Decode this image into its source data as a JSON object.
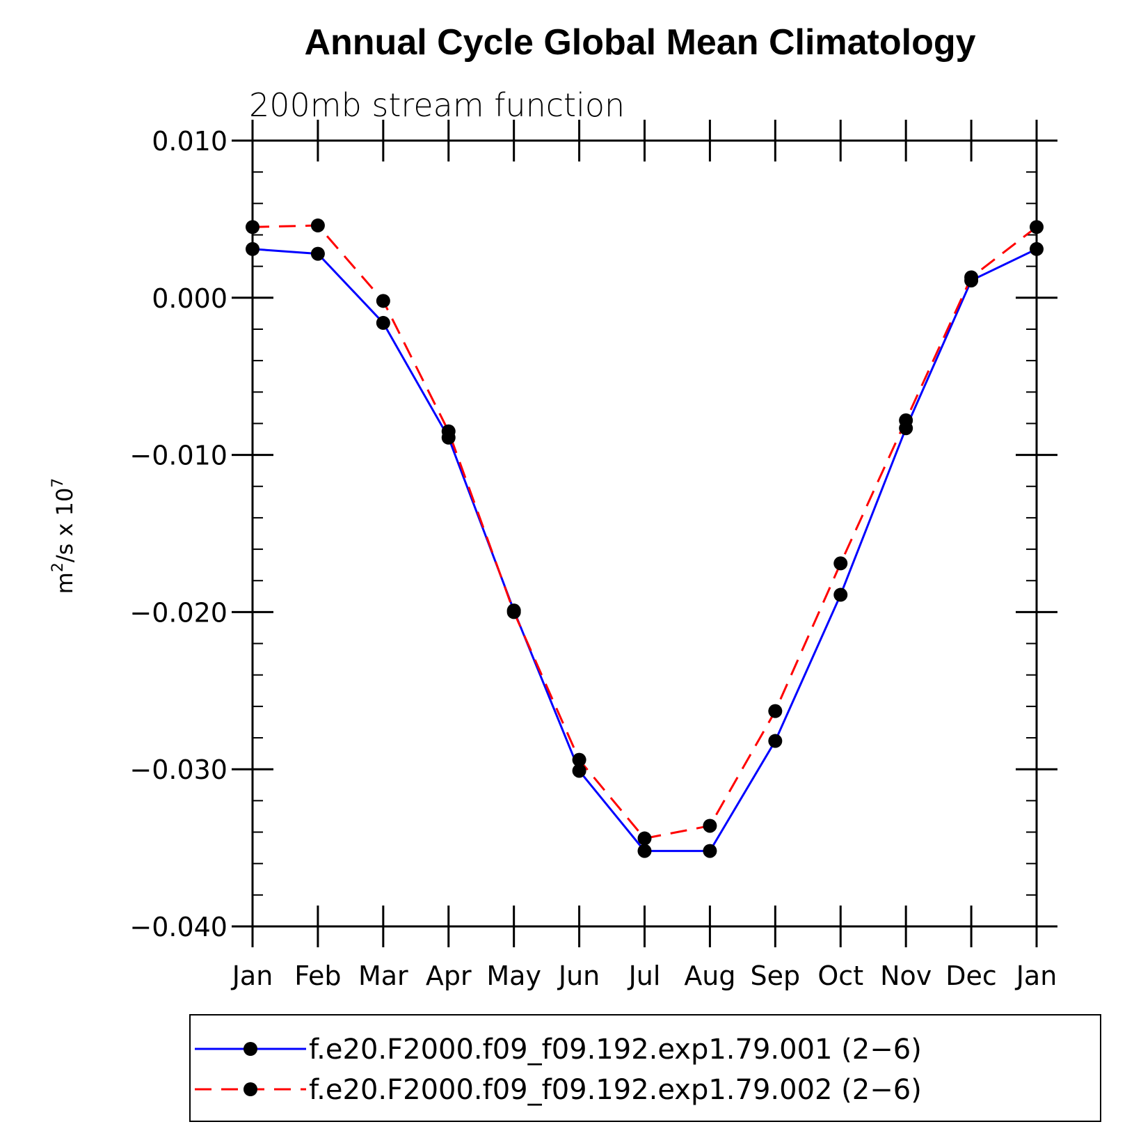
{
  "chart_data": {
    "type": "line",
    "title": "Annual Cycle Global Mean Climatology",
    "subtitle": "200mb stream function",
    "ylabel": "m²/s x 10⁷",
    "ylabel_parts": {
      "base": "m",
      "exp1": "2",
      "mid": "/s x 10",
      "exp2": "7"
    },
    "xlabel": "",
    "categories": [
      "Jan",
      "Feb",
      "Mar",
      "Apr",
      "May",
      "Jun",
      "Jul",
      "Aug",
      "Sep",
      "Oct",
      "Nov",
      "Dec",
      "Jan"
    ],
    "ylim": [
      -0.04,
      0.01
    ],
    "yticks": [
      0.01,
      0.0,
      -0.01,
      -0.02,
      -0.03,
      -0.04
    ],
    "ytick_labels": [
      "0.010",
      "0.000",
      "−0.010",
      "−0.020",
      "−0.030",
      "−0.040"
    ],
    "y_minor_step": 0.002,
    "grid": false,
    "legend_position": "bottom",
    "series": [
      {
        "name": "f.e20.F2000.f09_f09.192.exp1.79.001 (2−6)",
        "color": "#0000ff",
        "dash": "solid",
        "marker": "filled-circle",
        "values": [
          0.0031,
          0.0028,
          -0.0016,
          -0.0089,
          -0.0199,
          -0.0301,
          -0.0352,
          -0.0352,
          -0.0282,
          -0.0189,
          -0.0083,
          0.0011,
          0.0031
        ]
      },
      {
        "name": "f.e20.F2000.f09_f09.192.exp1.79.002 (2−6)",
        "color": "#ff0000",
        "dash": "dashed",
        "marker": "filled-circle",
        "values": [
          0.0045,
          0.0046,
          -0.0002,
          -0.0085,
          -0.02,
          -0.0294,
          -0.0344,
          -0.0336,
          -0.0263,
          -0.0169,
          -0.0078,
          0.0013,
          0.0045
        ]
      }
    ]
  }
}
